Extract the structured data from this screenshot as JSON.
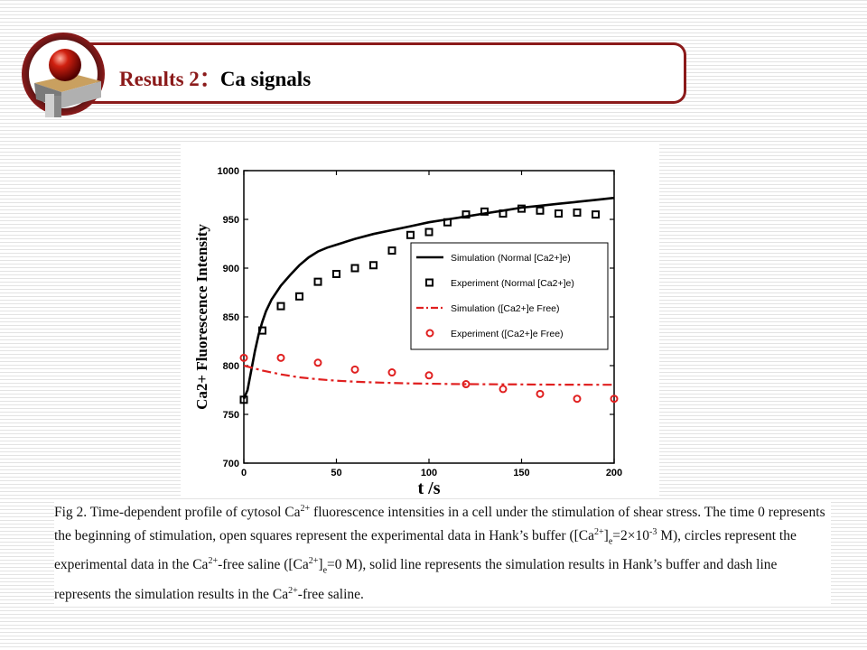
{
  "slide": {
    "title_main": "Results 2",
    "title_sep": "：",
    "title_sub": "Ca signals"
  },
  "caption": {
    "p1": "Fig 2. Time-dependent profile of cytosol Ca",
    "p1_sup": "2+",
    "p2": " fluorescence intensities in a cell under the stimulation of shear stress. The time 0 represents the beginning of stimulation, open squares represent the experimental data in Hank’s buffer ([Ca",
    "p2_sup": "2+",
    "p3": "]",
    "p3_sub": "e",
    "p4": "=2×10",
    "p4_sup": "-3",
    "p5": " M), circles represent the experimental data in the Ca",
    "p5_sup": "2+",
    "p6": "-free saline ([Ca",
    "p6_sup": "2+",
    "p7": "]",
    "p7_sub": "e",
    "p8": "=0 M), solid line represents the simulation results in Hank’s buffer and dash line represents the simulation results in the Ca",
    "p8_sup": "2+",
    "p9": "-free saline."
  },
  "chart_data": {
    "type": "line",
    "xlabel": "t /s",
    "ylabel": "Ca2+ Fluorescence Intensity",
    "xlim": [
      0,
      200
    ],
    "ylim": [
      700,
      1000
    ],
    "xticks": [
      0,
      50,
      100,
      150,
      200
    ],
    "yticks": [
      700,
      750,
      800,
      850,
      900,
      950,
      1000
    ],
    "grid": false,
    "legend_position": "right",
    "colors": {
      "black": "#000000",
      "red": "#e02020"
    },
    "series": [
      {
        "name": "Simulation (Normal [Ca2+]e)",
        "style": "solid-line",
        "color": "#000000",
        "x": [
          0,
          2,
          4,
          6,
          8,
          10,
          12,
          15,
          20,
          25,
          30,
          35,
          40,
          45,
          50,
          60,
          70,
          80,
          90,
          100,
          110,
          120,
          130,
          140,
          150,
          160,
          170,
          180,
          190,
          200
        ],
        "y": [
          766,
          775,
          795,
          815,
          832,
          845,
          856,
          868,
          882,
          893,
          903,
          911,
          917,
          921,
          924,
          930,
          935,
          939,
          943,
          947,
          950,
          953,
          956,
          959,
          962,
          964,
          966,
          968,
          970,
          972
        ]
      },
      {
        "name": "Experiment (Normal [Ca2+]e)",
        "style": "square-marker",
        "color": "#000000",
        "x": [
          0,
          10,
          20,
          30,
          40,
          50,
          60,
          70,
          80,
          90,
          100,
          110,
          120,
          130,
          140,
          150,
          160,
          170,
          180,
          190
        ],
        "y": [
          765,
          836,
          861,
          871,
          886,
          894,
          900,
          903,
          918,
          934,
          937,
          947,
          955,
          958,
          956,
          961,
          959,
          956,
          957,
          955
        ]
      },
      {
        "name": "Simulation ([Ca2+]e Free)",
        "style": "dash-dot-line",
        "color": "#e02020",
        "x": [
          0,
          10,
          20,
          30,
          40,
          50,
          60,
          70,
          80,
          90,
          100,
          110,
          120,
          130,
          140,
          150,
          160,
          170,
          180,
          190,
          200
        ],
        "y": [
          800,
          795,
          791,
          788,
          786,
          784.5,
          783.5,
          782.8,
          782.2,
          781.8,
          781.5,
          781.2,
          781,
          780.9,
          780.8,
          780.7,
          780.6,
          780.5,
          780.5,
          780.4,
          780.4
        ]
      },
      {
        "name": "Experiment ([Ca2+]e Free)",
        "style": "circle-marker",
        "color": "#e02020",
        "x": [
          0,
          20,
          40,
          60,
          80,
          100,
          120,
          140,
          160,
          180,
          200
        ],
        "y": [
          808,
          808,
          803,
          796,
          793,
          790,
          781,
          776,
          771,
          766,
          766
        ]
      }
    ]
  }
}
